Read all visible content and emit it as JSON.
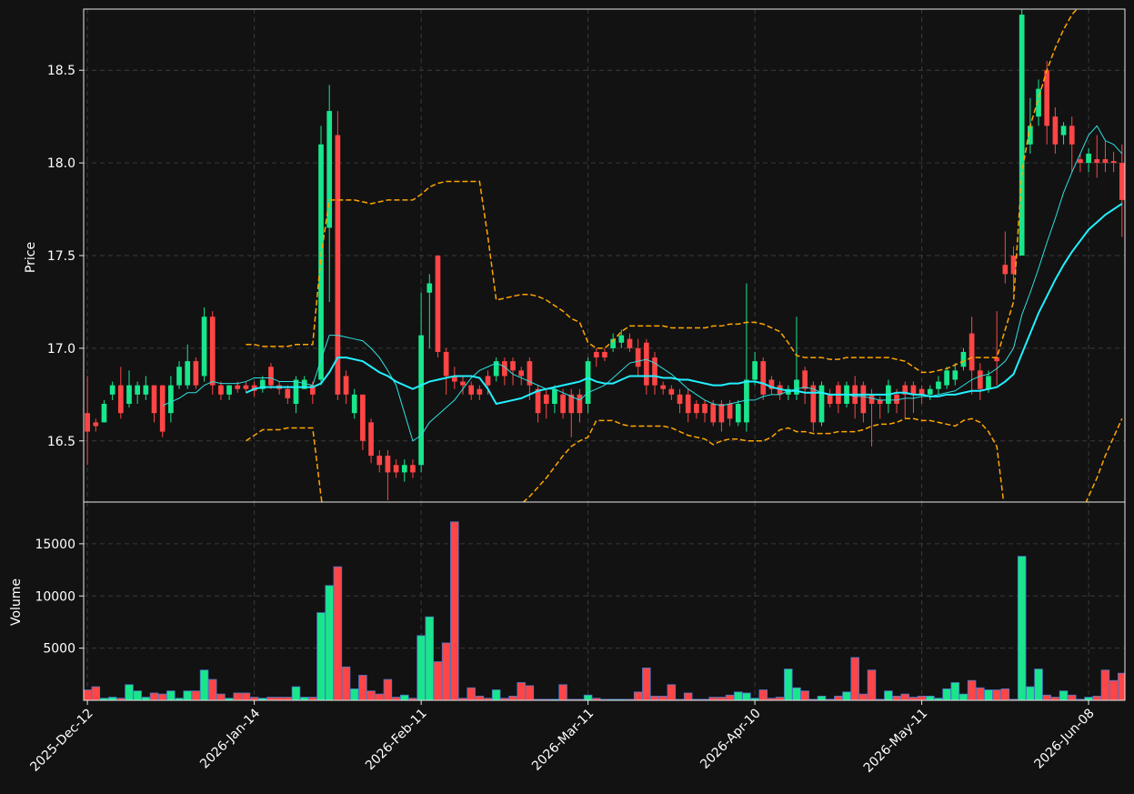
{
  "chart_data": {
    "type": "candlestick",
    "categories": [
      "2025-Dec-12",
      null,
      null,
      null,
      null,
      null,
      null,
      null,
      null,
      null,
      null,
      null,
      null,
      null,
      null,
      null,
      null,
      null,
      null,
      null,
      "2026-Jan-14",
      null,
      null,
      null,
      null,
      null,
      null,
      null,
      null,
      null,
      null,
      null,
      null,
      null,
      null,
      null,
      null,
      null,
      null,
      null,
      "2026-Feb-11",
      null,
      null,
      null,
      null,
      null,
      null,
      null,
      null,
      null,
      null,
      null,
      null,
      null,
      null,
      null,
      null,
      null,
      null,
      null,
      "2026-Mar-11",
      null,
      null,
      null,
      null,
      null,
      null,
      null,
      null,
      null,
      null,
      null,
      null,
      null,
      null,
      null,
      null,
      null,
      null,
      null,
      "2026-Apr-10",
      null,
      null,
      null,
      null,
      null,
      null,
      null,
      null,
      null,
      null,
      null,
      null,
      null,
      null,
      null,
      null,
      null,
      null,
      null,
      "2026-May-11",
      null,
      null,
      null,
      null,
      null,
      null,
      null,
      null,
      null,
      null,
      null,
      null,
      null,
      null,
      null,
      null,
      null,
      null,
      null,
      "2026-Jun-08",
      null,
      null,
      null,
      null
    ],
    "up_color": "#19e68c",
    "down_color": "#ff4545",
    "grid": true,
    "ylabel": "Price",
    "ylim": [
      16.17,
      18.83
    ],
    "yticks": [
      16.5,
      {
        "value": 17,
        "label": "17.0"
      },
      17.5,
      {
        "value": 18,
        "label": "18.0"
      },
      18.5
    ],
    "open": [
      16.65,
      16.6,
      16.6,
      16.75,
      16.8,
      16.7,
      16.75,
      16.75,
      16.8,
      16.8,
      16.65,
      16.8,
      16.8,
      16.93,
      16.85,
      17.17,
      16.8,
      16.75,
      16.8,
      16.8,
      16.8,
      16.78,
      16.9,
      16.8,
      16.78,
      16.7,
      16.78,
      16.8,
      16.83,
      17.65,
      18.15,
      16.85,
      16.65,
      16.75,
      16.6,
      16.42,
      16.42,
      16.37,
      16.33,
      16.37,
      16.37,
      17.3,
      17.5,
      16.98,
      16.85,
      16.82,
      16.8,
      16.78,
      16.85,
      16.85,
      16.93,
      16.93,
      16.88,
      16.93,
      16.78,
      16.75,
      16.7,
      16.75,
      16.75,
      16.75,
      16.7,
      16.98,
      16.98,
      17.0,
      17.03,
      17.05,
      17.0,
      17.03,
      16.95,
      16.8,
      16.78,
      16.75,
      16.75,
      16.7,
      16.7,
      16.7,
      16.7,
      16.7,
      16.6,
      16.6,
      16.83,
      16.93,
      16.83,
      16.8,
      16.75,
      16.75,
      16.88,
      16.8,
      16.6,
      16.75,
      16.8,
      16.7,
      16.8,
      16.8,
      16.75,
      16.72,
      16.7,
      16.75,
      16.8,
      16.8,
      16.78,
      16.75,
      16.78,
      16.8,
      16.83,
      16.9,
      17.08,
      16.88,
      16.78,
      16.95,
      17.45,
      17.5,
      17.5,
      18.1,
      18.25,
      18.5,
      18.25,
      18.15,
      18.2,
      18.02,
      18.0,
      18.02,
      18.02,
      18.01,
      18.0
    ],
    "high": [
      16.85,
      16.62,
      16.72,
      16.82,
      16.9,
      16.88,
      16.82,
      16.85,
      16.8,
      16.8,
      16.85,
      16.93,
      17.02,
      16.95,
      17.22,
      17.2,
      16.82,
      16.8,
      16.82,
      16.82,
      16.82,
      16.85,
      16.92,
      16.82,
      16.8,
      16.85,
      16.85,
      16.82,
      18.2,
      18.42,
      18.28,
      16.88,
      16.78,
      16.75,
      16.62,
      16.45,
      16.45,
      16.4,
      16.4,
      16.4,
      17.3,
      17.4,
      17.5,
      17.0,
      16.9,
      16.85,
      16.82,
      16.8,
      16.88,
      16.95,
      16.95,
      16.95,
      16.9,
      16.95,
      16.8,
      16.78,
      16.8,
      16.78,
      16.78,
      16.78,
      16.95,
      17.0,
      17.0,
      17.08,
      17.1,
      17.08,
      17.05,
      17.05,
      16.98,
      16.82,
      16.8,
      16.78,
      16.78,
      16.72,
      16.72,
      16.72,
      16.72,
      16.72,
      16.72,
      17.35,
      16.98,
      16.95,
      16.85,
      16.82,
      16.8,
      17.17,
      16.9,
      16.82,
      16.82,
      16.78,
      16.82,
      16.82,
      16.85,
      16.82,
      16.78,
      16.74,
      16.83,
      16.78,
      16.82,
      16.82,
      16.8,
      16.8,
      16.85,
      16.9,
      16.92,
      17.0,
      17.17,
      16.92,
      16.88,
      17.2,
      17.63,
      17.55,
      18.85,
      18.35,
      18.45,
      18.55,
      18.3,
      18.22,
      18.25,
      18.05,
      18.08,
      18.15,
      18.12,
      18.06,
      18.1
    ],
    "low": [
      16.37,
      16.55,
      16.6,
      16.72,
      16.62,
      16.68,
      16.7,
      16.72,
      16.6,
      16.52,
      16.6,
      16.78,
      16.78,
      16.78,
      16.82,
      16.75,
      16.72,
      16.72,
      16.76,
      16.76,
      16.74,
      16.76,
      16.78,
      16.75,
      16.7,
      16.65,
      16.78,
      16.7,
      16.8,
      17.25,
      16.72,
      16.7,
      16.62,
      16.45,
      16.38,
      16.33,
      16.18,
      16.3,
      16.28,
      16.3,
      16.33,
      17.0,
      16.95,
      16.75,
      16.78,
      16.75,
      16.72,
      16.72,
      16.75,
      16.82,
      16.8,
      16.8,
      16.8,
      16.72,
      16.6,
      16.62,
      16.65,
      16.62,
      16.52,
      16.6,
      16.65,
      16.9,
      16.93,
      16.98,
      17.0,
      16.98,
      16.85,
      16.75,
      16.75,
      16.75,
      16.72,
      16.65,
      16.6,
      16.62,
      16.6,
      16.58,
      16.55,
      16.58,
      16.58,
      16.55,
      16.8,
      16.72,
      16.75,
      16.72,
      16.72,
      16.72,
      16.7,
      16.55,
      16.58,
      16.68,
      16.65,
      16.68,
      16.62,
      16.6,
      16.47,
      16.62,
      16.65,
      16.65,
      16.62,
      16.65,
      16.7,
      16.72,
      16.75,
      16.78,
      16.8,
      16.88,
      16.75,
      16.72,
      16.76,
      16.8,
      17.35,
      17.3,
      17.5,
      18.05,
      18.2,
      18.1,
      18.05,
      18.1,
      17.95,
      17.95,
      17.95,
      17.92,
      17.95,
      17.95,
      17.6
    ],
    "close": [
      16.55,
      16.58,
      16.7,
      16.8,
      16.65,
      16.8,
      16.8,
      16.8,
      16.65,
      16.55,
      16.8,
      16.9,
      16.93,
      16.8,
      17.17,
      16.8,
      16.75,
      16.8,
      16.78,
      16.78,
      16.77,
      16.83,
      16.8,
      16.78,
      16.73,
      16.83,
      16.83,
      16.75,
      18.1,
      18.28,
      16.75,
      16.75,
      16.75,
      16.5,
      16.42,
      16.37,
      16.33,
      16.33,
      16.37,
      16.33,
      17.07,
      17.35,
      16.98,
      16.85,
      16.82,
      16.8,
      16.75,
      16.75,
      16.8,
      16.93,
      16.85,
      16.88,
      16.85,
      16.8,
      16.65,
      16.7,
      16.78,
      16.65,
      16.65,
      16.65,
      16.93,
      16.95,
      16.95,
      17.05,
      17.07,
      17.0,
      16.9,
      16.8,
      16.8,
      16.78,
      16.75,
      16.7,
      16.65,
      16.65,
      16.65,
      16.6,
      16.6,
      16.62,
      16.7,
      16.83,
      16.93,
      16.75,
      16.78,
      16.75,
      16.78,
      16.83,
      16.78,
      16.6,
      16.8,
      16.7,
      16.7,
      16.8,
      16.7,
      16.65,
      16.7,
      16.7,
      16.8,
      16.7,
      16.75,
      16.75,
      16.75,
      16.78,
      16.82,
      16.88,
      16.88,
      16.98,
      16.88,
      16.78,
      16.85,
      16.93,
      17.4,
      17.4,
      18.8,
      18.2,
      18.4,
      18.2,
      18.1,
      18.2,
      18.1,
      18.0,
      18.05,
      18.0,
      18.0,
      18.0,
      17.8
    ],
    "overlays": [
      {
        "color": "#2fe0e0",
        "style": "solid",
        "width": 1,
        "values": [
          null,
          null,
          null,
          null,
          null,
          null,
          null,
          null,
          null,
          16.69,
          16.71,
          16.73,
          16.76,
          16.76,
          16.8,
          16.82,
          16.81,
          16.81,
          16.81,
          16.82,
          16.84,
          16.84,
          16.84,
          16.82,
          16.82,
          16.82,
          16.81,
          16.8,
          16.94,
          17.07,
          17.07,
          17.06,
          17.05,
          17.04,
          17.0,
          16.95,
          16.88,
          16.8,
          16.65,
          16.5,
          16.53,
          16.6,
          16.64,
          16.68,
          16.72,
          16.78,
          16.84,
          16.88,
          16.9,
          16.92,
          16.9,
          16.86,
          16.84,
          16.82,
          16.8,
          16.78,
          16.78,
          16.76,
          16.74,
          16.72,
          16.76,
          16.78,
          16.8,
          16.84,
          16.88,
          16.92,
          16.93,
          16.94,
          16.92,
          16.89,
          16.86,
          16.82,
          16.78,
          16.75,
          16.72,
          16.7,
          16.69,
          16.7,
          16.71,
          16.72,
          16.72,
          16.74,
          16.75,
          16.75,
          16.77,
          16.78,
          16.79,
          16.78,
          16.76,
          16.75,
          16.75,
          16.75,
          16.74,
          16.74,
          16.73,
          16.72,
          16.72,
          16.72,
          16.73,
          16.73,
          16.74,
          16.74,
          16.75,
          16.76,
          16.77,
          16.8,
          16.83,
          16.85,
          16.86,
          16.89,
          16.93,
          17.0,
          17.18,
          17.3,
          17.43,
          17.57,
          17.7,
          17.84,
          17.95,
          18.05,
          18.15,
          18.2,
          18.12,
          18.1,
          18.05
        ]
      },
      {
        "color": "#22f0ff",
        "style": "solid",
        "width": 2,
        "values": [
          null,
          null,
          null,
          null,
          null,
          null,
          null,
          null,
          null,
          null,
          null,
          null,
          null,
          null,
          null,
          null,
          null,
          null,
          null,
          16.76,
          16.78,
          16.79,
          16.79,
          16.79,
          16.79,
          16.79,
          16.79,
          16.79,
          16.81,
          16.87,
          16.95,
          16.95,
          16.94,
          16.93,
          16.9,
          16.87,
          16.85,
          16.82,
          16.8,
          16.78,
          16.8,
          16.82,
          16.83,
          16.84,
          16.85,
          16.85,
          16.85,
          16.84,
          16.78,
          16.7,
          16.71,
          16.72,
          16.73,
          16.75,
          16.77,
          16.78,
          16.79,
          16.8,
          16.81,
          16.82,
          16.84,
          16.82,
          16.81,
          16.81,
          16.83,
          16.85,
          16.85,
          16.85,
          16.85,
          16.84,
          16.84,
          16.83,
          16.83,
          16.82,
          16.81,
          16.8,
          16.8,
          16.81,
          16.81,
          16.82,
          16.82,
          16.81,
          16.79,
          16.78,
          16.77,
          16.77,
          16.76,
          16.76,
          16.76,
          16.75,
          16.75,
          16.75,
          16.75,
          16.75,
          16.75,
          16.75,
          16.75,
          16.76,
          16.76,
          16.75,
          16.75,
          16.74,
          16.74,
          16.75,
          16.75,
          16.76,
          16.77,
          16.77,
          16.78,
          16.79,
          16.82,
          16.86,
          16.97,
          17.08,
          17.19,
          17.28,
          17.37,
          17.45,
          17.52,
          17.58,
          17.64,
          17.68,
          17.72,
          17.75,
          17.78
        ]
      },
      {
        "color": "#ffa500",
        "style": "dashed",
        "width": 1.5,
        "values": [
          null,
          null,
          null,
          null,
          null,
          null,
          null,
          null,
          null,
          null,
          null,
          null,
          null,
          null,
          null,
          null,
          null,
          null,
          null,
          17.02,
          17.02,
          17.01,
          17.01,
          17.01,
          17.01,
          17.02,
          17.02,
          17.02,
          17.5,
          17.8,
          17.8,
          17.8,
          17.8,
          17.79,
          17.78,
          17.79,
          17.8,
          17.8,
          17.8,
          17.8,
          17.83,
          17.87,
          17.89,
          17.9,
          17.9,
          17.9,
          17.9,
          17.9,
          17.6,
          17.26,
          17.27,
          17.28,
          17.29,
          17.29,
          17.28,
          17.26,
          17.23,
          17.2,
          17.16,
          17.14,
          17.03,
          17.0,
          17.0,
          17.04,
          17.09,
          17.12,
          17.12,
          17.12,
          17.12,
          17.12,
          17.11,
          17.11,
          17.11,
          17.11,
          17.11,
          17.12,
          17.12,
          17.13,
          17.13,
          17.14,
          17.14,
          17.13,
          17.11,
          17.09,
          17.03,
          16.96,
          16.95,
          16.95,
          16.95,
          16.94,
          16.94,
          16.95,
          16.95,
          16.95,
          16.95,
          16.95,
          16.95,
          16.94,
          16.93,
          16.9,
          16.87,
          16.87,
          16.88,
          16.89,
          16.91,
          16.93,
          16.95,
          16.95,
          16.95,
          16.95,
          17.1,
          17.25,
          17.95,
          18.2,
          18.35,
          18.5,
          18.62,
          18.72,
          18.8,
          18.85,
          18.9,
          18.95,
          19.0,
          19.05,
          19.1
        ]
      },
      {
        "color": "#ffa500",
        "style": "dashed",
        "width": 1.5,
        "values": [
          null,
          null,
          null,
          null,
          null,
          null,
          null,
          null,
          null,
          null,
          null,
          null,
          null,
          null,
          null,
          null,
          null,
          null,
          null,
          16.5,
          16.53,
          16.56,
          16.56,
          16.56,
          16.57,
          16.57,
          16.57,
          16.57,
          16.2,
          15.9,
          15.8,
          15.7,
          15.6,
          15.55,
          15.5,
          15.5,
          15.5,
          15.5,
          15.5,
          15.5,
          15.55,
          15.6,
          15.62,
          15.65,
          15.65,
          15.65,
          15.65,
          15.65,
          15.75,
          15.9,
          16.05,
          16.1,
          16.16,
          16.2,
          16.25,
          16.3,
          16.36,
          16.42,
          16.47,
          16.5,
          16.52,
          16.61,
          16.61,
          16.61,
          16.59,
          16.58,
          16.58,
          16.58,
          16.58,
          16.58,
          16.57,
          16.55,
          16.53,
          16.52,
          16.51,
          16.48,
          16.5,
          16.51,
          16.51,
          16.5,
          16.5,
          16.5,
          16.52,
          16.56,
          16.57,
          16.55,
          16.55,
          16.54,
          16.54,
          16.54,
          16.55,
          16.55,
          16.55,
          16.56,
          16.58,
          16.59,
          16.59,
          16.6,
          16.62,
          16.62,
          16.61,
          16.61,
          16.6,
          16.59,
          16.58,
          16.61,
          16.62,
          16.6,
          16.55,
          16.47,
          16.1,
          15.8,
          15.5,
          15.3,
          15.2,
          15.2,
          15.3,
          15.5,
          15.7,
          16.1,
          16.2,
          16.3,
          16.42,
          16.52,
          16.62
        ]
      }
    ],
    "volume": {
      "ylabel": "Volume",
      "edge_color": "#4a78c8",
      "ylim": [
        0,
        19000
      ],
      "yticks": [
        5000,
        10000,
        15000
      ],
      "values": [
        1000,
        1300,
        200,
        300,
        200,
        1500,
        900,
        300,
        700,
        600,
        900,
        200,
        900,
        900,
        2900,
        2000,
        600,
        200,
        700,
        700,
        300,
        200,
        300,
        300,
        300,
        1300,
        300,
        300,
        8400,
        11000,
        12800,
        3200,
        1100,
        2400,
        900,
        600,
        2000,
        300,
        500,
        200,
        6200,
        8000,
        3700,
        5500,
        17100,
        200,
        1200,
        400,
        200,
        1000,
        200,
        400,
        1700,
        1400,
        100,
        100,
        100,
        1500,
        100,
        100,
        500,
        200,
        100,
        100,
        100,
        100,
        800,
        3100,
        400,
        400,
        1500,
        100,
        700,
        100,
        100,
        300,
        300,
        500,
        800,
        700,
        200,
        1000,
        200,
        300,
        3000,
        1200,
        900,
        100,
        400,
        100,
        400,
        800,
        4100,
        600,
        2900,
        100,
        900,
        400,
        600,
        300,
        400,
        400,
        200,
        1100,
        1700,
        600,
        1900,
        1200,
        1000,
        1000,
        1100,
        100,
        13800,
        1300,
        3000,
        500,
        300,
        900,
        500,
        100,
        300,
        400,
        2900,
        1900,
        2600
      ]
    }
  }
}
